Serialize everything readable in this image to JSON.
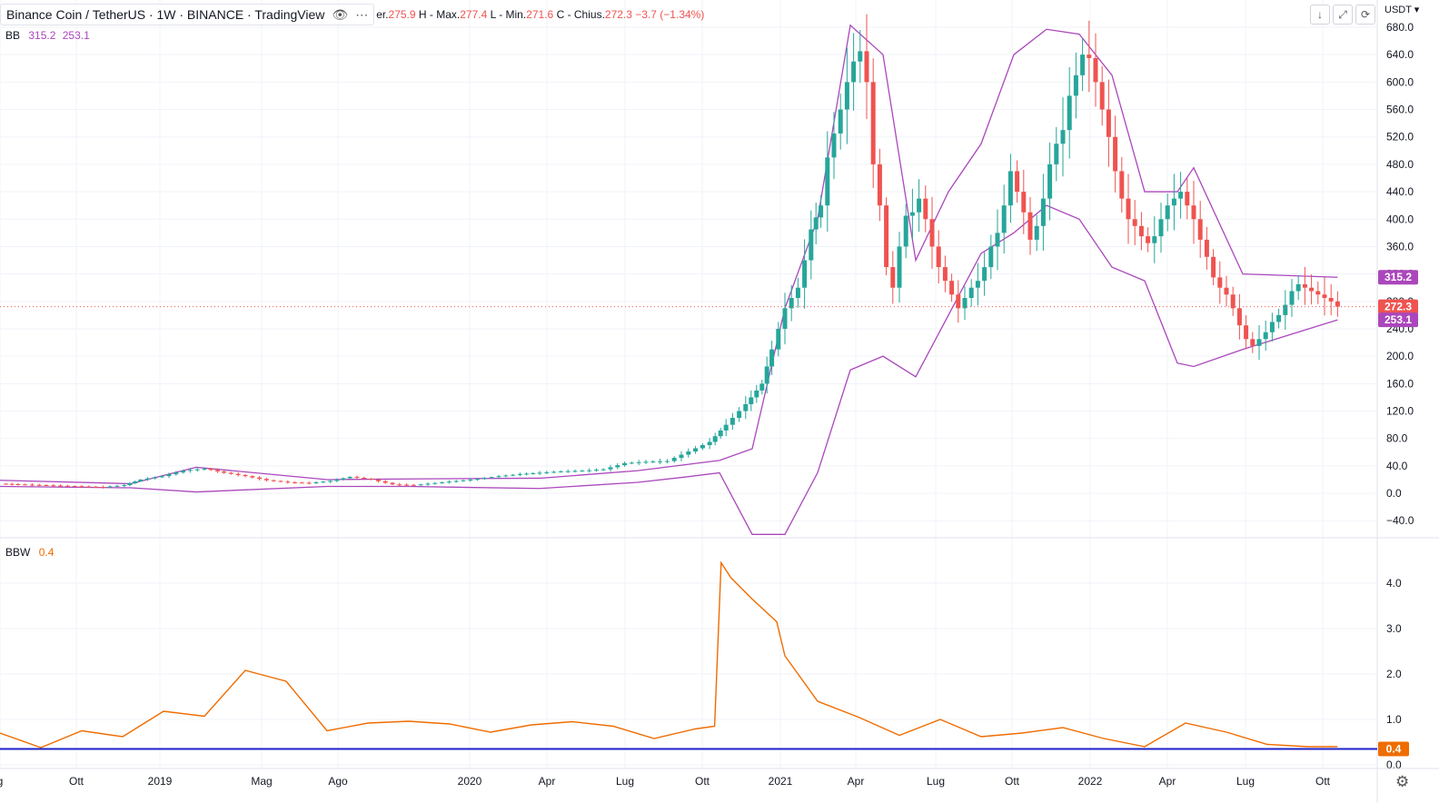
{
  "header": {
    "symbol": "Binance Coin / TetherUS · 1W · BINANCE · TradingView",
    "open_label": "er.",
    "open": "275.9",
    "high_label": "H - Max.",
    "high": "277.4",
    "low_label": "L - Min.",
    "low": "271.6",
    "close_label": "C - Chius.",
    "close": "272.3",
    "change": "−3.7 (−1.34%)",
    "eye_icon": "eye-icon",
    "more_icon": "more-icon"
  },
  "indicators": {
    "bb": {
      "name": "BB",
      "upper": "315.2",
      "lower": "253.1"
    },
    "bbw": {
      "name": "BBW",
      "value": "0.4"
    }
  },
  "toolbar": {
    "currency": "USDT",
    "arrow_icon": "arrow-down-icon",
    "fullscreen_icon": "fullscreen-icon",
    "reset_icon": "reset-icon",
    "gear_icon": "gear-icon"
  },
  "colors": {
    "up": "#26a69a",
    "down": "#ef5350",
    "bb": "#ab47bc",
    "bbw": "#ef6c00",
    "level": "#1e22c8",
    "grid": "#f0f3fa"
  },
  "chart_data": [
    {
      "type": "candlestick",
      "name": "main",
      "price_axis": {
        "ticks": [
          "680.0",
          "640.0",
          "600.0",
          "560.0",
          "520.0",
          "480.0",
          "440.0",
          "400.0",
          "360.0",
          "320.0",
          "280.0",
          "240.0",
          "200.0",
          "160.0",
          "120.0",
          "80.0",
          "40.0",
          "0.0",
          "−40.0"
        ]
      },
      "price_labels": {
        "upper": "315.2",
        "last": "272.3",
        "lower": "253.1"
      },
      "x_axis": {
        "ticks": [
          "g",
          "Ott",
          "2019",
          "Mag",
          "Ago",
          "2020",
          "Apr",
          "Lug",
          "Ott",
          "2021",
          "Apr",
          "Lug",
          "Ott",
          "2022",
          "Apr",
          "Lug",
          "Ott"
        ]
      },
      "ylim": [
        -66,
        686
      ],
      "last_price": 272.3,
      "close_series": [
        [
          0,
          14
        ],
        [
          11,
          13
        ],
        [
          24,
          12
        ],
        [
          37,
          11
        ],
        [
          50,
          10
        ],
        [
          63,
          9
        ],
        [
          76,
          12
        ],
        [
          86,
          20
        ],
        [
          99,
          25
        ],
        [
          112,
          33
        ],
        [
          125,
          36
        ],
        [
          137,
          30
        ],
        [
          150,
          25
        ],
        [
          163,
          19
        ],
        [
          176,
          16
        ],
        [
          189,
          15
        ],
        [
          202,
          18
        ],
        [
          214,
          24
        ],
        [
          227,
          20
        ],
        [
          240,
          13
        ],
        [
          253,
          12
        ],
        [
          266,
          15
        ],
        [
          279,
          18
        ],
        [
          292,
          21
        ],
        [
          305,
          25
        ],
        [
          318,
          28
        ],
        [
          330,
          30
        ],
        [
          343,
          32
        ],
        [
          356,
          33
        ],
        [
          369,
          35
        ],
        [
          382,
          44
        ],
        [
          395,
          46
        ],
        [
          408,
          47
        ],
        [
          421,
          61
        ],
        [
          434,
          75
        ],
        [
          444,
          100
        ],
        [
          456,
          130
        ],
        [
          466,
          160
        ],
        [
          472,
          210
        ],
        [
          480,
          270
        ],
        [
          488,
          300
        ],
        [
          492,
          340
        ],
        [
          496,
          385
        ],
        [
          502,
          420
        ],
        [
          506,
          490
        ],
        [
          510,
          525
        ],
        [
          514,
          560
        ],
        [
          518,
          600
        ],
        [
          522,
          630
        ],
        [
          526,
          645
        ],
        [
          530,
          600
        ],
        [
          534,
          480
        ],
        [
          538,
          420
        ],
        [
          542,
          330
        ],
        [
          546,
          300
        ],
        [
          550,
          360
        ],
        [
          554,
          405
        ],
        [
          558,
          410
        ],
        [
          562,
          430
        ],
        [
          566,
          400
        ],
        [
          570,
          360
        ],
        [
          574,
          330
        ],
        [
          578,
          310
        ],
        [
          582,
          290
        ],
        [
          586,
          270
        ],
        [
          590,
          285
        ],
        [
          594,
          300
        ],
        [
          598,
          310
        ],
        [
          602,
          330
        ],
        [
          606,
          360
        ],
        [
          610,
          380
        ],
        [
          614,
          420
        ],
        [
          618,
          470
        ],
        [
          622,
          440
        ],
        [
          626,
          410
        ],
        [
          630,
          370
        ],
        [
          634,
          390
        ],
        [
          638,
          430
        ],
        [
          642,
          480
        ],
        [
          646,
          510
        ],
        [
          650,
          530
        ],
        [
          654,
          580
        ],
        [
          658,
          610
        ],
        [
          662,
          640
        ],
        [
          666,
          635
        ],
        [
          670,
          600
        ],
        [
          674,
          560
        ],
        [
          678,
          520
        ],
        [
          682,
          470
        ],
        [
          686,
          430
        ],
        [
          690,
          400
        ],
        [
          694,
          390
        ],
        [
          698,
          375
        ],
        [
          702,
          365
        ],
        [
          706,
          375
        ],
        [
          710,
          400
        ],
        [
          714,
          420
        ],
        [
          718,
          430
        ],
        [
          722,
          440
        ],
        [
          726,
          420
        ],
        [
          730,
          400
        ],
        [
          734,
          370
        ],
        [
          738,
          345
        ],
        [
          742,
          315
        ],
        [
          746,
          300
        ],
        [
          750,
          290
        ],
        [
          754,
          270
        ],
        [
          758,
          245
        ],
        [
          762,
          225
        ],
        [
          766,
          215
        ],
        [
          770,
          225
        ],
        [
          774,
          235
        ],
        [
          778,
          250
        ],
        [
          782,
          260
        ],
        [
          786,
          275
        ],
        [
          790,
          295
        ],
        [
          794,
          305
        ],
        [
          798,
          300
        ],
        [
          802,
          295
        ],
        [
          806,
          290
        ],
        [
          810,
          285
        ],
        [
          814,
          280
        ],
        [
          818,
          272.3
        ]
      ],
      "bb_upper": [
        [
          0,
          19
        ],
        [
          80,
          14
        ],
        [
          120,
          38
        ],
        [
          200,
          20
        ],
        [
          250,
          21
        ],
        [
          330,
          22
        ],
        [
          390,
          33
        ],
        [
          420,
          42
        ],
        [
          440,
          48
        ],
        [
          460,
          65
        ],
        [
          480,
          270
        ],
        [
          500,
          400
        ],
        [
          520,
          683
        ],
        [
          540,
          640
        ],
        [
          560,
          340
        ],
        [
          580,
          440
        ],
        [
          600,
          510
        ],
        [
          620,
          640
        ],
        [
          640,
          677
        ],
        [
          660,
          670
        ],
        [
          680,
          610
        ],
        [
          700,
          440
        ],
        [
          720,
          440
        ],
        [
          730,
          475
        ],
        [
          760,
          320
        ],
        [
          818,
          315.2
        ]
      ],
      "bb_lower": [
        [
          0,
          10
        ],
        [
          80,
          8
        ],
        [
          120,
          2
        ],
        [
          200,
          10
        ],
        [
          250,
          10
        ],
        [
          330,
          7
        ],
        [
          390,
          16
        ],
        [
          420,
          24
        ],
        [
          440,
          30
        ],
        [
          460,
          -60
        ],
        [
          480,
          -60
        ],
        [
          500,
          30
        ],
        [
          520,
          180
        ],
        [
          540,
          200
        ],
        [
          560,
          170
        ],
        [
          580,
          260
        ],
        [
          600,
          350
        ],
        [
          620,
          380
        ],
        [
          640,
          420
        ],
        [
          660,
          400
        ],
        [
          680,
          330
        ],
        [
          700,
          310
        ],
        [
          720,
          190
        ],
        [
          730,
          185
        ],
        [
          760,
          210
        ],
        [
          818,
          253.1
        ]
      ]
    },
    {
      "type": "line",
      "name": "BBW",
      "y_axis": {
        "ticks": [
          "4.0",
          "3.0",
          "2.0",
          "1.0",
          "0.0"
        ]
      },
      "ylim": [
        0,
        4.85
      ],
      "value_label": "0.4",
      "level": 0.35,
      "x": [
        0,
        25,
        50,
        75,
        100,
        125,
        150,
        175,
        200,
        225,
        250,
        275,
        300,
        325,
        350,
        375,
        400,
        425,
        437,
        441,
        447,
        460,
        475,
        480,
        500,
        525,
        550,
        575,
        600,
        625,
        650,
        675,
        700,
        725,
        750,
        775,
        800,
        818
      ],
      "values": [
        0.7,
        0.38,
        0.75,
        0.62,
        1.18,
        1.07,
        2.08,
        1.84,
        0.75,
        0.92,
        0.96,
        0.9,
        0.72,
        0.88,
        0.95,
        0.85,
        0.58,
        0.79,
        0.85,
        4.45,
        4.12,
        3.65,
        3.15,
        2.4,
        1.4,
        1.05,
        0.65,
        1.0,
        0.62,
        0.7,
        0.82,
        0.58,
        0.4,
        0.92,
        0.72,
        0.45,
        0.4,
        0.4
      ]
    }
  ]
}
